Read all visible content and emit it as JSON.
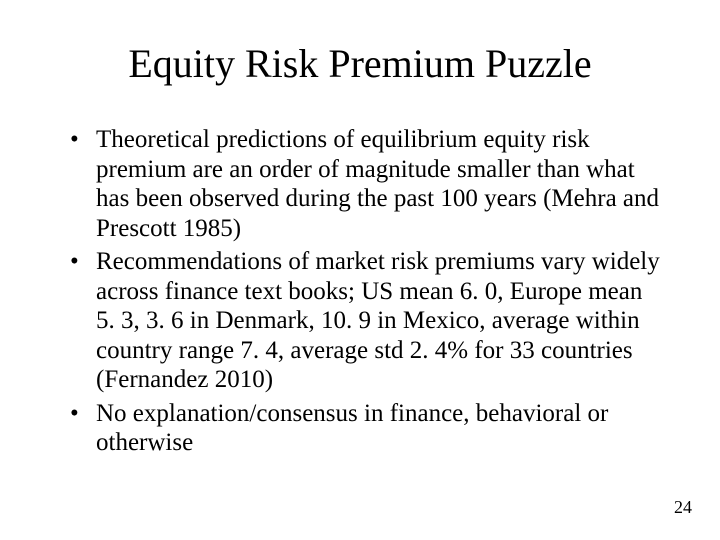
{
  "title": "Equity Risk Premium Puzzle",
  "bullets": [
    "Theoretical predictions of equilibrium equity risk premium are an order of magnitude smaller than what has been observed during the past 100 years (Mehra and Prescott 1985)",
    "Recommendations of market risk premiums vary widely across finance text books; US mean 6. 0, Europe mean 5. 3, 3. 6 in Denmark, 10. 9 in Mexico, average within country range 7. 4, average std 2. 4% for 33 countries (Fernandez 2010)",
    "No explanation/consensus in finance, behavioral or otherwise"
  ],
  "page_number": "24",
  "colors": {
    "background": "#ffffff",
    "text": "#000000"
  },
  "typography": {
    "title_fontsize": 40,
    "body_fontsize": 25,
    "pagenum_fontsize": 18,
    "font_family": "Times New Roman"
  }
}
